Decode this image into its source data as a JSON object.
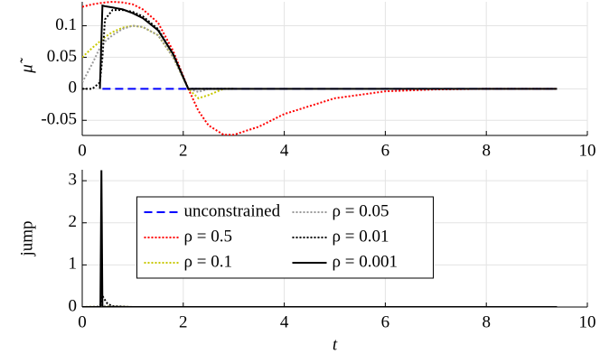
{
  "chart_data": [
    {
      "type": "line",
      "ylabel": "μ̃",
      "x": [
        0,
        0.2,
        0.35,
        0.4,
        0.45,
        0.6,
        0.8,
        1,
        1.2,
        1.5,
        1.8,
        2.1,
        2.3,
        2.5,
        2.8,
        3,
        3.5,
        4,
        5,
        6,
        7,
        8,
        9.4
      ],
      "series": [
        {
          "color": "#0000ff",
          "dash": "dashed",
          "values": [
            null,
            null,
            null,
            0,
            0,
            0,
            0,
            0,
            0,
            0,
            0,
            0,
            0,
            0,
            0,
            0,
            0,
            0,
            0,
            0,
            0,
            0,
            0
          ]
        },
        {
          "color": "#ff0000",
          "dash": "dotted",
          "values": [
            0.13,
            0.134,
            0.136,
            0.136,
            0.137,
            0.138,
            0.137,
            0.134,
            0.126,
            0.105,
            0.06,
            0,
            -0.035,
            -0.058,
            -0.073,
            -0.073,
            -0.06,
            -0.04,
            -0.015,
            -0.004,
            -0.001,
            0,
            0
          ]
        },
        {
          "color": "#c8c800",
          "dash": "dotted",
          "values": [
            0.05,
            0.065,
            0.075,
            0.078,
            0.082,
            0.09,
            0.097,
            0.1,
            0.098,
            0.085,
            0.05,
            0,
            -0.015,
            -0.01,
            0,
            0,
            null,
            null,
            null,
            null,
            null,
            null,
            null
          ]
        },
        {
          "color": "#999999",
          "dash": "dotted",
          "values": [
            0.01,
            0.04,
            0.065,
            0.07,
            0.075,
            0.085,
            0.095,
            0.1,
            0.098,
            0.085,
            0.05,
            0,
            -0.005,
            0,
            0,
            0,
            null,
            null,
            null,
            null,
            null,
            null,
            null
          ]
        },
        {
          "color": "#000000",
          "dash": "dotted",
          "values": [
            0,
            0,
            0.01,
            0.05,
            0.11,
            0.125,
            0.125,
            0.122,
            0.115,
            0.095,
            0.055,
            0,
            0,
            0,
            0,
            0,
            null,
            null,
            null,
            null,
            null,
            null,
            null
          ]
        },
        {
          "color": "#000000",
          "dash": "solid",
          "values": [
            null,
            null,
            0,
            0.132,
            0.131,
            0.129,
            0.126,
            0.12,
            0.112,
            0.093,
            0.055,
            0,
            0,
            0,
            0,
            0,
            0,
            0,
            0,
            0,
            0,
            0,
            0
          ]
        }
      ],
      "xlim": [
        0,
        10
      ],
      "xticks": [
        0,
        2,
        4,
        6,
        8,
        10
      ],
      "ylim": [
        -0.074,
        0.138
      ],
      "yticks": [
        -0.05,
        0,
        0.05,
        0.1
      ],
      "grid": true
    },
    {
      "type": "line",
      "ylabel": "jump",
      "xlabel": "t",
      "x": [
        0,
        0.3,
        0.36,
        0.38,
        0.4,
        0.43,
        0.5,
        0.6,
        1,
        2,
        4,
        6,
        8,
        9.4
      ],
      "series": [
        {
          "name": "unconstrained",
          "color": "#0000ff",
          "dash": "dashed",
          "values": [
            0,
            0,
            0,
            0,
            0,
            0,
            0,
            0,
            0,
            0,
            0,
            0,
            0,
            0
          ]
        },
        {
          "name": "ρ = 0.5",
          "color": "#ff0000",
          "dash": "dotted",
          "values": [
            0,
            0,
            0,
            0,
            0,
            0,
            0,
            0,
            0,
            0,
            0,
            0,
            0,
            0
          ]
        },
        {
          "name": "ρ = 0.1",
          "color": "#c8c800",
          "dash": "dotted",
          "values": [
            0,
            0.01,
            0.01,
            0.01,
            0.02,
            0.02,
            0.02,
            0.01,
            0,
            0,
            0,
            0,
            0,
            0
          ]
        },
        {
          "name": "ρ = 0.05",
          "color": "#999999",
          "dash": "dotted",
          "values": [
            0,
            0.01,
            0.02,
            0.03,
            0.04,
            0.03,
            0.02,
            0.01,
            0,
            0,
            0,
            0,
            0,
            0
          ]
        },
        {
          "name": "ρ = 0.01",
          "color": "#000000",
          "dash": "dotted",
          "values": [
            0,
            0,
            0.05,
            0.15,
            0.27,
            0.2,
            0.08,
            0.02,
            0,
            0,
            0,
            0,
            0,
            0
          ]
        },
        {
          "name": "ρ = 0.001",
          "color": "#000000",
          "dash": "solid",
          "values": [
            0,
            0,
            0,
            3.25,
            0,
            0,
            0,
            0,
            0,
            0,
            0,
            0,
            0,
            0
          ]
        }
      ],
      "xlim": [
        0,
        10
      ],
      "xticks": [
        0,
        2,
        4,
        6,
        8,
        10
      ],
      "ylim": [
        0,
        3.26
      ],
      "yticks": [
        0,
        1,
        2,
        3
      ],
      "grid": true,
      "legend": "center",
      "legend_columns": 2
    }
  ]
}
